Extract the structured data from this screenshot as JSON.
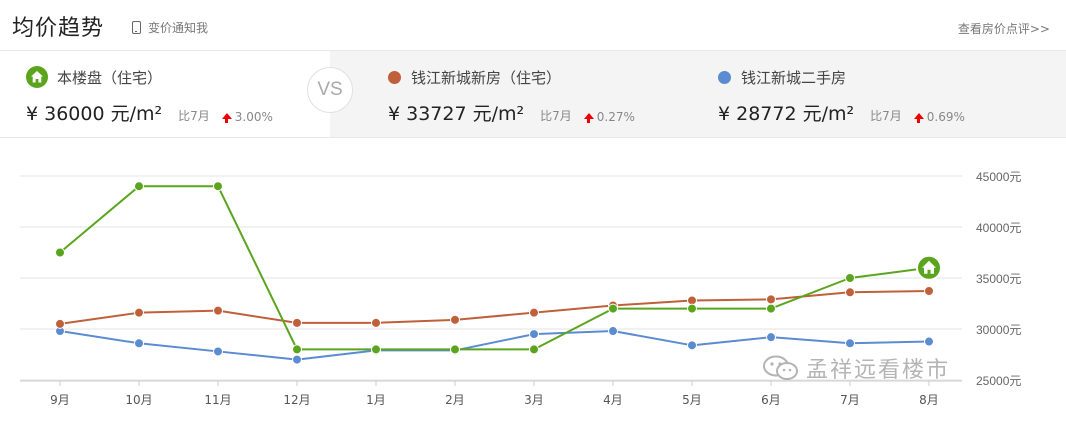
{
  "header": {
    "title": "均价趋势",
    "notify_label": "变价通知我",
    "review_link": "查看房价点评>>"
  },
  "compare": {
    "vs_label": "VS",
    "items": [
      {
        "name": "本楼盘（住宅）",
        "price": "¥ 36000",
        "unit": "元/m²",
        "mom_label": "比7月",
        "change": "3.00%",
        "color": "#5aa51d",
        "icon": "house-icon"
      },
      {
        "name": "钱江新城新房（住宅）",
        "price": "¥ 33727",
        "unit": "元/m²",
        "mom_label": "比7月",
        "change": "0.27%",
        "color": "#c0603a",
        "icon": "dot"
      },
      {
        "name": "钱江新城二手房",
        "price": "¥ 28772",
        "unit": "元/m²",
        "mom_label": "比7月",
        "change": "0.69%",
        "color": "#5b8bd0",
        "icon": "dot"
      }
    ]
  },
  "chart_data": {
    "type": "line",
    "categories": [
      "9月",
      "10月",
      "11月",
      "12月",
      "1月",
      "2月",
      "3月",
      "4月",
      "5月",
      "6月",
      "7月",
      "8月"
    ],
    "y_ticks": [
      "45000元",
      "40000元",
      "35000元",
      "30000元",
      "25000元"
    ],
    "ylim": [
      25000,
      45000
    ],
    "grid": true,
    "series": [
      {
        "name": "本楼盘（住宅）",
        "color": "#5aa51d",
        "values": [
          37500,
          44000,
          44000,
          28000,
          28000,
          28000,
          28000,
          32000,
          32000,
          32000,
          35000,
          36000
        ]
      },
      {
        "name": "钱江新城新房（住宅）",
        "color": "#c0603a",
        "values": [
          30500,
          31600,
          31800,
          30600,
          30600,
          30900,
          31600,
          32300,
          32800,
          32900,
          33600,
          33727
        ]
      },
      {
        "name": "钱江新城二手房",
        "color": "#5b8bd0",
        "values": [
          29800,
          28600,
          27800,
          27000,
          27900,
          27900,
          29500,
          29800,
          28400,
          29200,
          28600,
          28772
        ]
      }
    ]
  },
  "watermark": {
    "text": "孟祥远看楼市"
  }
}
